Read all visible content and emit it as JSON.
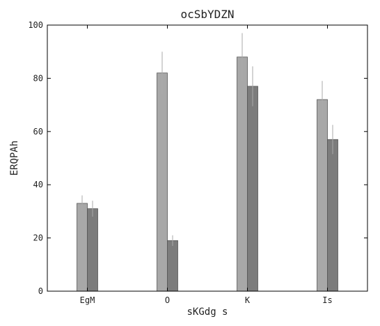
{
  "chart_data": {
    "type": "bar",
    "title": "ocSbYDZN",
    "xlabel": "sKGdg s",
    "ylabel": "ERQPAh",
    "categories": [
      "EgM",
      "O",
      "K",
      "Is"
    ],
    "ylim": [
      0,
      100
    ],
    "yticks": [
      0,
      20,
      40,
      60,
      80,
      100
    ],
    "grid": false,
    "series": [
      {
        "values": [
          33,
          82,
          88,
          72
        ],
        "errors": [
          3,
          8,
          9,
          7
        ],
        "color": "#a8a8a8"
      },
      {
        "values": [
          31,
          19,
          77,
          57
        ],
        "errors": [
          3,
          2,
          7.5,
          5.5
        ],
        "color": "#7c7c7c"
      }
    ]
  }
}
